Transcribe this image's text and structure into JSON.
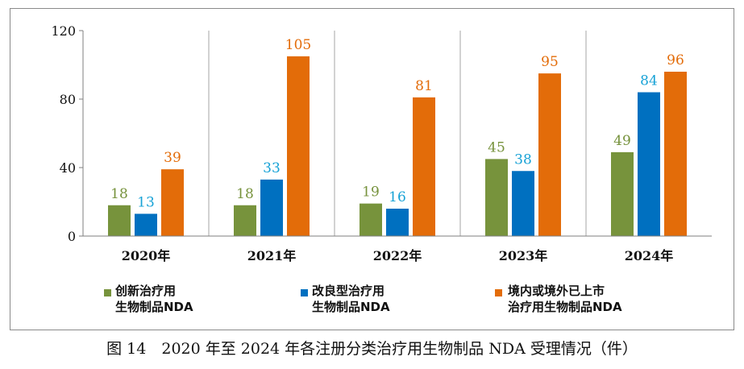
{
  "chart_data": {
    "type": "bar",
    "title": "",
    "xlabel": "",
    "ylabel": "",
    "ylim": [
      0,
      120
    ],
    "yticks": [
      0,
      40,
      80,
      120
    ],
    "categories": [
      "2020年",
      "2021年",
      "2022年",
      "2023年",
      "2024年"
    ],
    "series": [
      {
        "name": "创新治疗用生物制品NDA",
        "name_line1": "创新治疗用",
        "name_line2": "生物制品NDA",
        "color": "#77933c",
        "label_color": "#76923c",
        "values": [
          18,
          18,
          19,
          45,
          49
        ]
      },
      {
        "name": "改良型治疗用生物制品NDA",
        "name_line1": "改良型治疗用",
        "name_line2": "生物制品NDA",
        "color": "#0070c0",
        "label_color": "#17a2d6",
        "values": [
          13,
          33,
          16,
          38,
          84
        ]
      },
      {
        "name": "境内或境外已上市治疗用生物制品NDA",
        "name_line1": "境内或境外已上市",
        "name_line2": "治疗用生物制品NDA",
        "color": "#e36c09",
        "label_color": "#e36c09",
        "values": [
          39,
          105,
          81,
          95,
          96
        ]
      }
    ],
    "grid": false,
    "legend_position": "bottom"
  },
  "caption": "图 14　2020 年至 2024 年各注册分类治疗用生物制品 NDA 受理情况（件）"
}
